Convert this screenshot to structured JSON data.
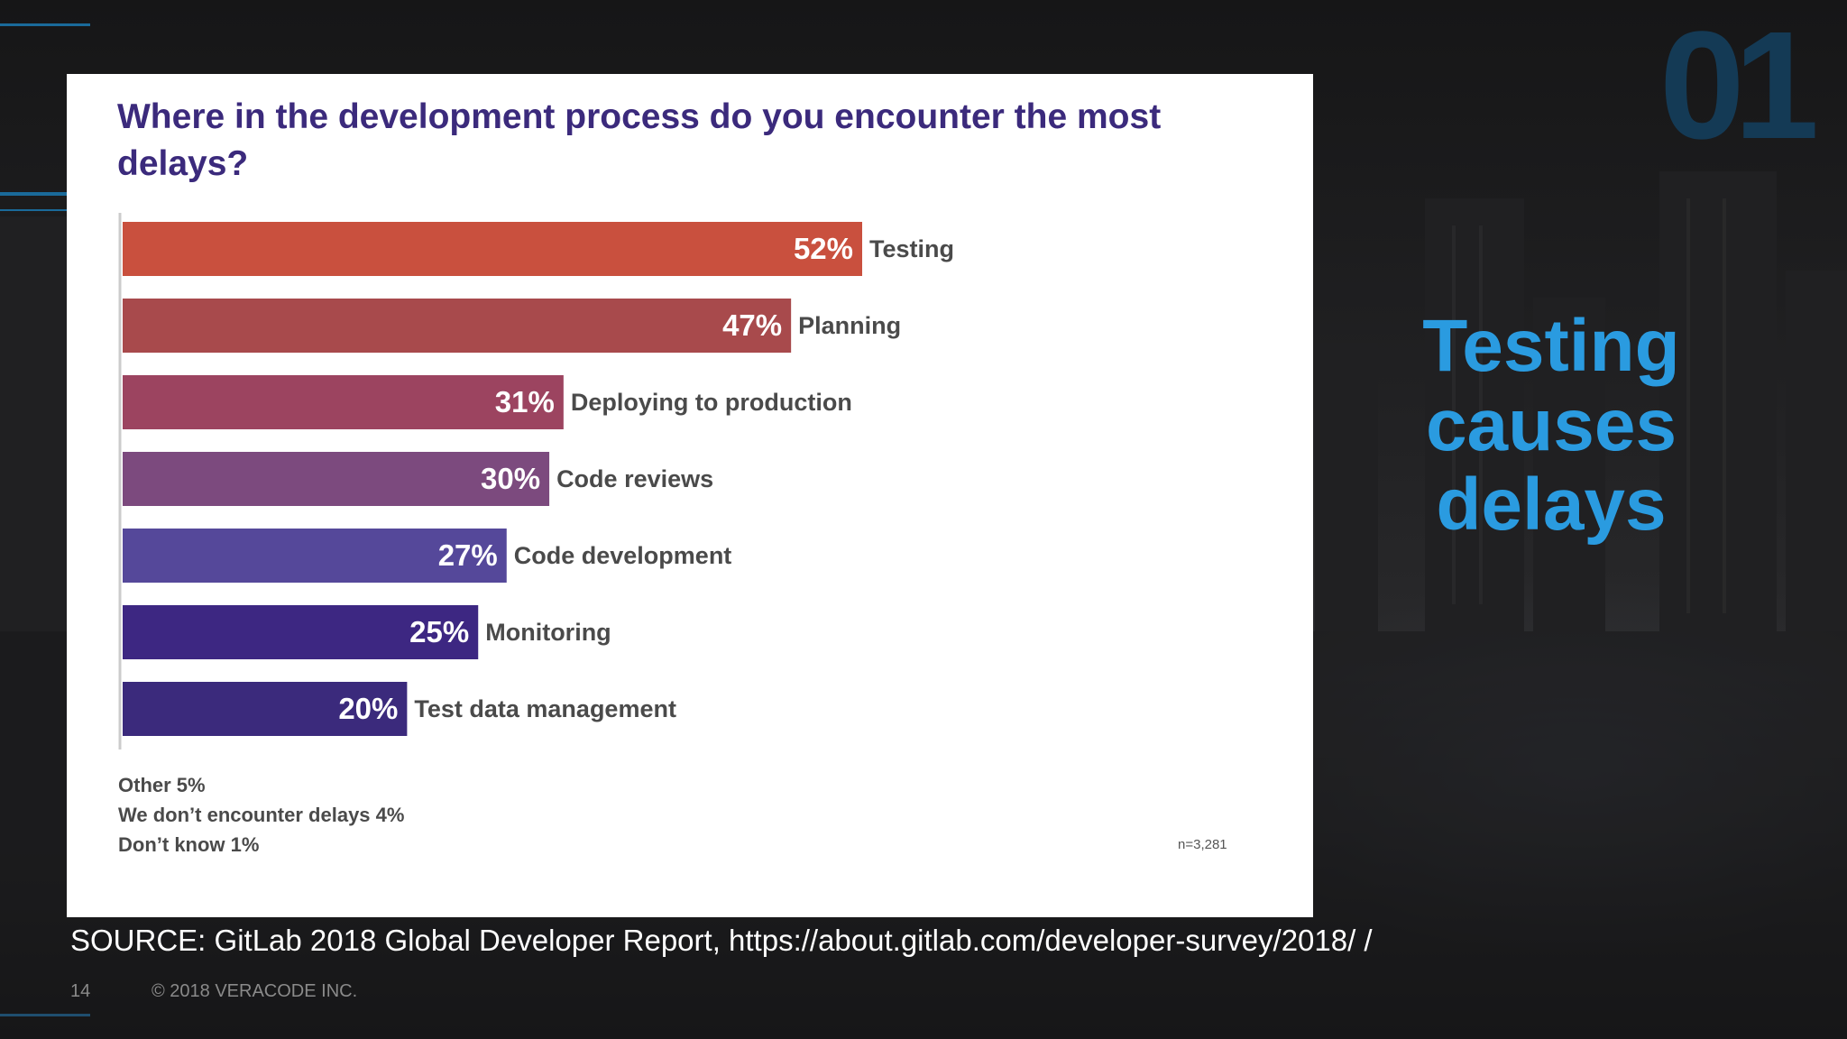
{
  "slide": {
    "big_number": "01",
    "headline_lines": [
      "Testing",
      "causes",
      "delays"
    ],
    "source": "SOURCE: GitLab 2018 Global Developer Report, https://about.gitlab.com/developer-survey/2018/ /",
    "page_number": "14",
    "copyright": "© 2018 VERACODE INC.",
    "accent_color": "#2a9be0"
  },
  "chart_data": {
    "type": "bar",
    "orientation": "horizontal",
    "title": "Where in the development process do you encounter the most delays?",
    "categories": [
      "Testing",
      "Planning",
      "Deploying to production",
      "Code reviews",
      "Code development",
      "Monitoring",
      "Test data management"
    ],
    "values": [
      52,
      47,
      31,
      30,
      27,
      25,
      20
    ],
    "value_labels": [
      "52%",
      "47%",
      "31%",
      "30%",
      "27%",
      "25%",
      "20%"
    ],
    "colors": [
      "#c9503e",
      "#a84a4c",
      "#9c4460",
      "#7c4a7e",
      "#55489a",
      "#3d2782",
      "#3b2a7c"
    ],
    "notes": [
      "Other 5%",
      "We don’t encounter delays 4%",
      "Don’t know 1%"
    ],
    "sample_size": "n=3,281",
    "xlim": [
      0,
      100
    ]
  }
}
